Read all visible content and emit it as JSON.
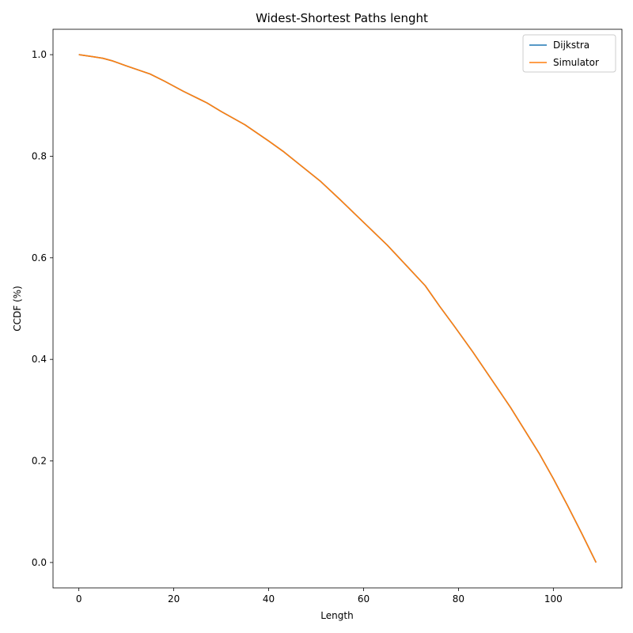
{
  "chart_data": {
    "type": "line",
    "title": "Widest-Shortest Paths lenght",
    "xlabel": "Length",
    "ylabel": "CCDF (%)",
    "xlim": [
      -5.45,
      114.45
    ],
    "ylim": [
      -0.05,
      1.05
    ],
    "xticks": [
      0,
      20,
      40,
      60,
      80,
      100
    ],
    "yticks": [
      0.0,
      0.2,
      0.4,
      0.6,
      0.8,
      1.0
    ],
    "grid": false,
    "legend_position": "top-right",
    "series": [
      {
        "name": "Dijkstra",
        "color": "#1f77b4",
        "x": [
          0,
          3,
          5,
          7,
          10,
          15,
          18,
          22,
          27,
          30,
          35,
          40,
          43,
          47,
          51,
          55,
          60,
          65,
          69,
          73,
          76,
          79,
          83,
          87,
          91,
          95,
          97,
          100,
          103,
          106,
          109
        ],
        "y": [
          1.0,
          0.996,
          0.993,
          0.988,
          0.978,
          0.962,
          0.948,
          0.928,
          0.905,
          0.888,
          0.862,
          0.83,
          0.81,
          0.78,
          0.75,
          0.715,
          0.67,
          0.625,
          0.585,
          0.545,
          0.505,
          0.467,
          0.415,
          0.36,
          0.305,
          0.245,
          0.215,
          0.165,
          0.112,
          0.057,
          0.0
        ]
      },
      {
        "name": "Simulator",
        "color": "#ff7f0e",
        "x": [
          0,
          3,
          5,
          7,
          10,
          15,
          18,
          22,
          27,
          30,
          35,
          40,
          43,
          47,
          51,
          55,
          60,
          65,
          69,
          73,
          76,
          79,
          83,
          87,
          91,
          95,
          97,
          100,
          103,
          106,
          109
        ],
        "y": [
          1.0,
          0.996,
          0.993,
          0.988,
          0.978,
          0.962,
          0.948,
          0.928,
          0.905,
          0.888,
          0.862,
          0.83,
          0.81,
          0.78,
          0.75,
          0.715,
          0.67,
          0.625,
          0.585,
          0.545,
          0.505,
          0.467,
          0.415,
          0.36,
          0.305,
          0.245,
          0.215,
          0.165,
          0.112,
          0.057,
          0.0
        ]
      }
    ]
  }
}
